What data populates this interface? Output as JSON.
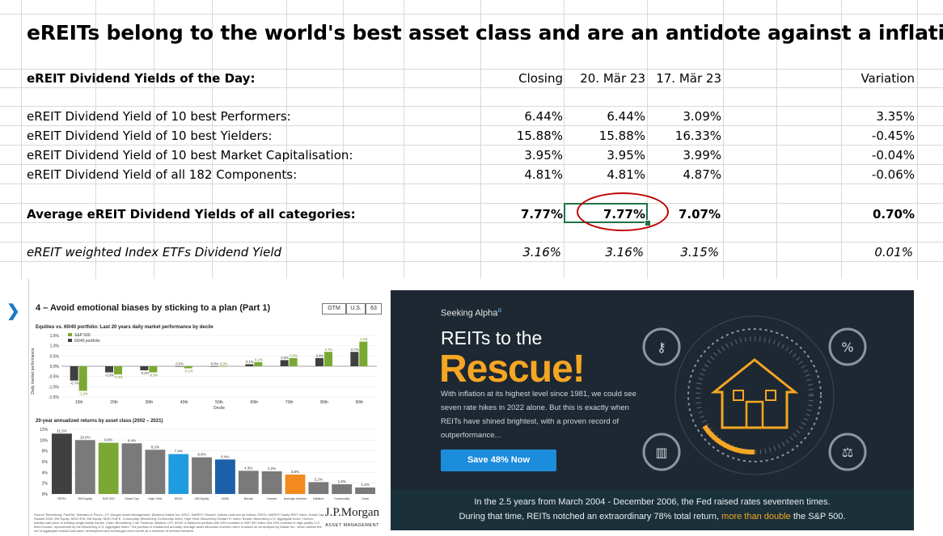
{
  "sheet": {
    "title": "eREITs belong to the world's best asset class and are an antidote against a inflation!",
    "header": {
      "label": "eREIT Dividend Yields of the Day:",
      "closing": "Closing",
      "date1": "20. Mär 23",
      "date2": "17. Mär 23",
      "variation": "Variation"
    },
    "rows": [
      {
        "label": "eREIT Dividend Yield of 10 best Performers:",
        "closing": "6.44%",
        "d1": "6.44%",
        "d2": "3.09%",
        "var": "3.35%"
      },
      {
        "label": "eREIT Dividend Yield of 10 best Yielders:",
        "closing": "15.88%",
        "d1": "15.88%",
        "d2": "16.33%",
        "var": "-0.45%"
      },
      {
        "label": "eREIT Dividend Yield of 10 best Market Capitalisation:",
        "closing": "3.95%",
        "d1": "3.95%",
        "d2": "3.99%",
        "var": "-0.04%"
      },
      {
        "label": "eREIT Dividend Yield of all 182 Components:",
        "closing": "4.81%",
        "d1": "4.81%",
        "d2": "4.87%",
        "var": "-0.06%"
      }
    ],
    "average": {
      "label": "Average eREIT Dividend Yields of all categories:",
      "closing": "7.77%",
      "d1": "7.77%",
      "d2": "7.07%",
      "var": "0.70%"
    },
    "etf": {
      "label": "eREIT weighted Index ETFs Dividend Yield",
      "closing": "3.16%",
      "d1": "3.16%",
      "d2": "3.15%",
      "var": "0.01%"
    }
  },
  "jpm": {
    "title": "4 – Avoid emotional biases by sticking to a plan (Part 1)",
    "tags": [
      "GTM",
      "U.S.",
      "63"
    ],
    "chart1_title": "Equities vs. 60/40 portfolio: Last 20 years daily market performance by decile",
    "chart1_ylabel": "Daily market performance",
    "chart1_legend": [
      "S&P 500",
      "60/40 portfolio"
    ],
    "chart1_xlabel": "Decile",
    "chart2_title": "20-year annualized returns by asset class (2002 – 2021)",
    "logo": "J.P.Morgan",
    "logo_sub": "ASSET MANAGEMENT",
    "footnote": "Source: Bloomberg, FactSet, Standard & Poor's, J.P. Morgan Asset Management; (Bottom) Dalbar Inc, MSCI, NAREIT, Russell. Indices used are as follows: REITs: NAREIT Equity REIT Index, Small Cap: Russell 2000, EM Equity: MSCI EM, DM Equity: MSCI EAFE, Commodity: Bloomberg Commodity Index, High Yield: Bloomberg Global HY Index, Bonds: Bloomberg U.S. Aggregate Index, Homes: median sale price of existing single-family homes, Cash: Bloomberg 1-3m Treasury, Inflation: CPI. 60/40: A balanced portfolio with 60% invested in S&P 500 Index and 40% invested in high-quality U.S. fixed income, represented by the Bloomberg U.S. Aggregate Index. The portfolio is rebalanced annually. Average asset allocation investor return is based on an analysis by Dalbar Inc., which utilizes the net of aggregate mutual fund sales, redemptions and exchanges each month as a measure of investor behavior."
  },
  "chart_data": [
    {
      "type": "bar",
      "title": "Equities vs. 60/40 portfolio: Last 20 years daily market performance by decile",
      "xlabel": "Decile",
      "ylabel": "Daily market performance",
      "categories": [
        "10th",
        "20th",
        "30th",
        "40th",
        "50th",
        "60th",
        "70th",
        "80th",
        "90th"
      ],
      "series": [
        {
          "name": "S&P 500",
          "color": "#7aa832",
          "values": [
            -1.2,
            -0.4,
            -0.3,
            -0.1,
            0.0,
            0.2,
            0.4,
            0.7,
            1.2
          ]
        },
        {
          "name": "60/40 portfolio",
          "color": "#404040",
          "values": [
            -0.7,
            -0.3,
            -0.2,
            0.0,
            0.0,
            0.1,
            0.3,
            0.4,
            0.7
          ]
        }
      ],
      "value_labels": [
        [
          "-1.2%",
          "-0.4%",
          "-0.3%",
          "-0.1%",
          "0.0%",
          "0.2%",
          "0.4%",
          "0.7%",
          "1.2%"
        ],
        [
          "-0.7%",
          "-0.3%",
          "-0.2%",
          "0.0%",
          "0.0%",
          "0.1%",
          "0.3%",
          "0.4%",
          "0.7%"
        ]
      ],
      "yticks": [
        "1.5%",
        "1.0%",
        "0.5%",
        "0.0%",
        "-0.5%",
        "-1.0%",
        "-1.5%"
      ],
      "ylim": [
        -1.5,
        1.5
      ]
    },
    {
      "type": "bar",
      "title": "20-year annualized returns by asset class (2002 – 2021)",
      "categories": [
        "REITs",
        "EM Equity",
        "S&P 500",
        "Small Cap",
        "High Yield",
        "60/40",
        "DM Equity",
        "40/60",
        "Bonds",
        "Homes",
        "Average investor",
        "Inflation",
        "Commodity",
        "Cash"
      ],
      "values": [
        11.2,
        10.0,
        9.5,
        9.4,
        8.2,
        7.4,
        6.8,
        6.4,
        4.3,
        4.2,
        3.6,
        2.2,
        1.8,
        1.2
      ],
      "labels": [
        "11.2%",
        "10.0%",
        "9.5%",
        "9.4%",
        "8.2%",
        "7.4%",
        "6.8%",
        "6.4%",
        "4.3%",
        "4.2%",
        "3.6%",
        "2.2%",
        "1.8%",
        "1.2%"
      ],
      "colors": [
        "#404040",
        "#7a7a7a",
        "#7aa832",
        "#7a7a7a",
        "#7a7a7a",
        "#1f9ce0",
        "#7a7a7a",
        "#1d5fa8",
        "#7a7a7a",
        "#7a7a7a",
        "#f28a1e",
        "#7a7a7a",
        "#7a7a7a",
        "#7a7a7a"
      ],
      "yticks": [
        "12%",
        "10%",
        "8%",
        "6%",
        "4%",
        "2%",
        "0%"
      ],
      "ylim": [
        0,
        12
      ]
    }
  ],
  "sa": {
    "logo": "Seeking Alpha",
    "logo_sup": "α",
    "headline1": "REITs to the",
    "headline2": "Rescue!",
    "body": "With inflation at its highest level since 1981, we could see seven rate hikes in 2022 alone. But this is exactly when REITs have shined brightest, with a proven record of outperformance...",
    "button": "Save 48% Now",
    "footer1": "In the 2.5 years from March 2004 - December 2006, the Fed raised rates seventeen times.",
    "footer2a": "During that time, REITs notched an extraordinary 78% total return, ",
    "footer2b": "more than double",
    "footer2c": " the S&P 500."
  }
}
